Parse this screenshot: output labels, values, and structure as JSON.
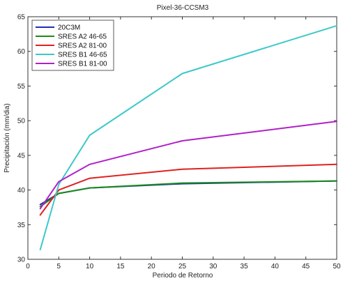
{
  "chart_data": {
    "type": "line",
    "title": "Pixel-36-CCSM3",
    "xlabel": "Periodo de Retorno",
    "ylabel": "Precipitación (mm/dia)",
    "xlim": [
      0,
      50
    ],
    "ylim": [
      30,
      65
    ],
    "xticks": [
      0,
      5,
      10,
      15,
      20,
      25,
      30,
      35,
      40,
      45,
      50
    ],
    "yticks": [
      30,
      35,
      40,
      45,
      50,
      55,
      60,
      65
    ],
    "grid": false,
    "legend_position": "top-left",
    "x": [
      2,
      5,
      10,
      25,
      50
    ],
    "series": [
      {
        "name": "20C3M",
        "color": "#1f2fb5",
        "values": [
          37.9,
          39.5,
          40.3,
          40.9,
          41.3
        ]
      },
      {
        "name": "SRES A2 46-65",
        "color": "#1a8a1a",
        "values": [
          37.6,
          39.5,
          40.3,
          41.0,
          41.3
        ]
      },
      {
        "name": "SRES A2 81-00",
        "color": "#e02020",
        "values": [
          36.4,
          40.0,
          41.7,
          43.0,
          43.7
        ]
      },
      {
        "name": "SRES B1 46-65",
        "color": "#3cc8c8",
        "values": [
          31.4,
          40.8,
          47.9,
          56.8,
          63.7
        ]
      },
      {
        "name": "SRES B1 81-00",
        "color": "#b020c8",
        "values": [
          37.3,
          41.2,
          43.7,
          47.1,
          49.9
        ]
      }
    ]
  }
}
